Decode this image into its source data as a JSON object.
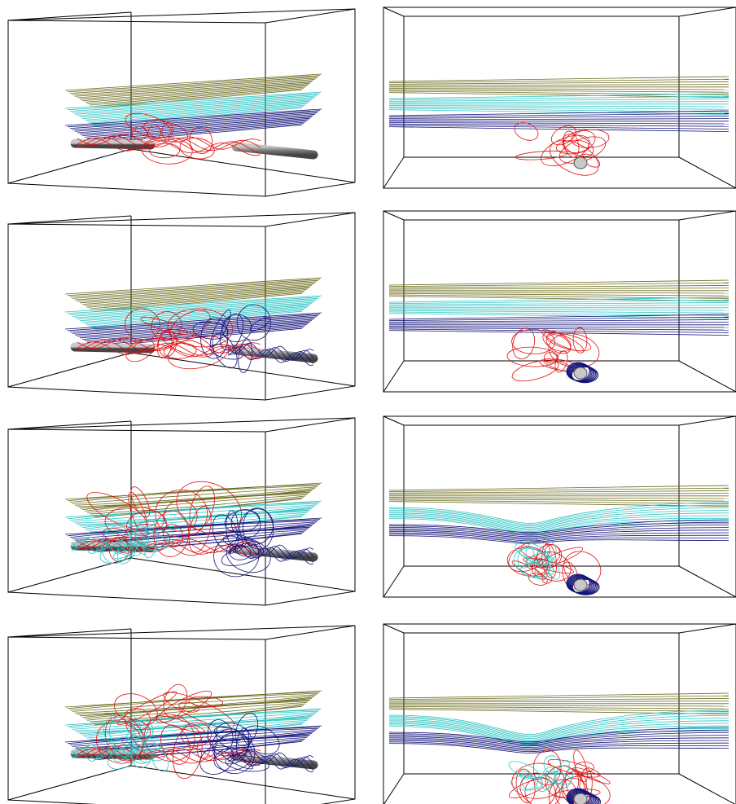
{
  "figure": {
    "columns": [
      "perspective-view",
      "side-view"
    ],
    "rows": 4,
    "colors": {
      "box": "#000000",
      "olive": "#6b6b1f",
      "cyan": "#2ec4c4",
      "navy": "#12127a",
      "red": "#e01010",
      "tube_dark": "#555555",
      "tube_light": "#c8c8c8"
    },
    "panels": [
      {
        "view": "perspective",
        "stage": 1,
        "layers": [
          "olive",
          "cyan",
          "navy"
        ],
        "rope_colors": [
          "red"
        ],
        "tube_tints": [
          "gray",
          "gray"
        ]
      },
      {
        "view": "side",
        "stage": 1,
        "layers": [
          "olive",
          "cyan",
          "navy"
        ],
        "rope_colors": [
          "red"
        ]
      },
      {
        "view": "perspective",
        "stage": 2,
        "layers": [
          "olive",
          "cyan",
          "navy"
        ],
        "rope_colors": [
          "red",
          "navy"
        ],
        "tube_tints": [
          "gray",
          "navy"
        ]
      },
      {
        "view": "side",
        "stage": 2,
        "layers": [
          "olive",
          "cyan",
          "navy"
        ],
        "rope_colors": [
          "red",
          "navy"
        ]
      },
      {
        "view": "perspective",
        "stage": 3,
        "layers": [
          "olive",
          "cyan",
          "navy"
        ],
        "rope_colors": [
          "red",
          "navy",
          "cyan"
        ],
        "tube_tints": [
          "cyan",
          "navy"
        ]
      },
      {
        "view": "side",
        "stage": 3,
        "layers": [
          "olive",
          "cyan",
          "navy"
        ],
        "rope_colors": [
          "red",
          "navy",
          "cyan"
        ]
      },
      {
        "view": "perspective",
        "stage": 4,
        "layers": [
          "olive",
          "cyan",
          "navy"
        ],
        "rope_colors": [
          "red",
          "navy",
          "cyan"
        ],
        "tube_tints": [
          "cyan",
          "navy"
        ]
      },
      {
        "view": "side",
        "stage": 4,
        "layers": [
          "olive",
          "cyan",
          "navy"
        ],
        "rope_colors": [
          "red",
          "navy",
          "cyan"
        ]
      }
    ]
  }
}
